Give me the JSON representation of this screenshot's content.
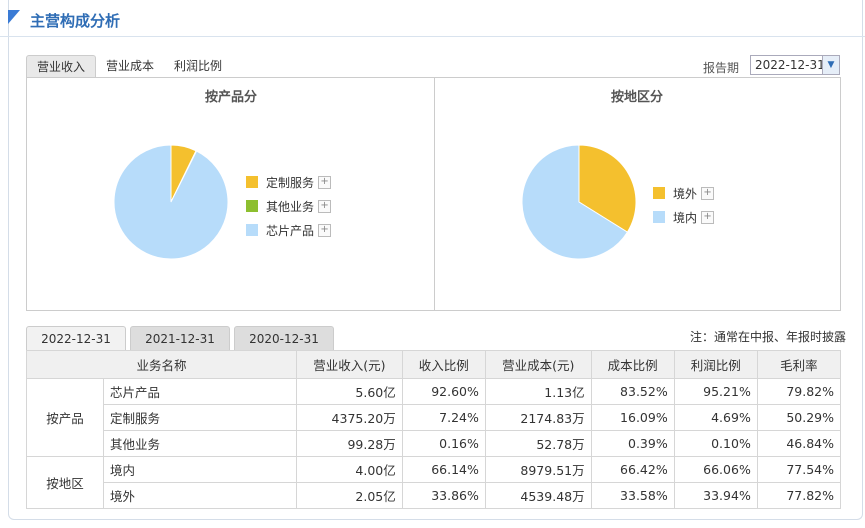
{
  "header": {
    "title": "主营构成分析"
  },
  "top_tabs": [
    {
      "label": "营业收入",
      "active": true
    },
    {
      "label": "营业成本",
      "active": false
    },
    {
      "label": "利润比例",
      "active": false
    }
  ],
  "period": {
    "label": "报告期",
    "value": "2022-12-31"
  },
  "chart_data": [
    {
      "type": "pie",
      "title": "按产品分",
      "slices": [
        {
          "label": "定制服务",
          "value": 7.24,
          "color": "#f4c02e"
        },
        {
          "label": "其他业务",
          "value": 0.16,
          "color": "#8dbf2f"
        },
        {
          "label": "芯片产品",
          "value": 92.6,
          "color": "#b7dcfa"
        }
      ],
      "legend": [
        "定制服务",
        "其他业务",
        "芯片产品"
      ]
    },
    {
      "type": "pie",
      "title": "按地区分",
      "slices": [
        {
          "label": "境外",
          "value": 33.86,
          "color": "#f4c02e"
        },
        {
          "label": "境内",
          "value": 66.14,
          "color": "#b7dcfa"
        }
      ],
      "legend": [
        "境外",
        "境内"
      ]
    }
  ],
  "bottom_tabs": [
    {
      "label": "2022-12-31",
      "active": true
    },
    {
      "label": "2021-12-31",
      "active": false
    },
    {
      "label": "2020-12-31",
      "active": false
    }
  ],
  "note": "注：通常在中报、年报时披露",
  "table": {
    "headers": [
      "业务名称",
      "营业收入(元)",
      "收入比例",
      "营业成本(元)",
      "成本比例",
      "利润比例",
      "毛利率"
    ],
    "groups": [
      {
        "label": "按产品",
        "rows": [
          [
            "芯片产品",
            "5.60亿",
            "92.60%",
            "1.13亿",
            "83.52%",
            "95.21%",
            "79.82%"
          ],
          [
            "定制服务",
            "4375.20万",
            "7.24%",
            "2174.83万",
            "16.09%",
            "4.69%",
            "50.29%"
          ],
          [
            "其他业务",
            "99.28万",
            "0.16%",
            "52.78万",
            "0.39%",
            "0.10%",
            "46.84%"
          ]
        ]
      },
      {
        "label": "按地区",
        "rows": [
          [
            "境内",
            "4.00亿",
            "66.14%",
            "8979.51万",
            "66.42%",
            "66.06%",
            "77.54%"
          ],
          [
            "境外",
            "2.05亿",
            "33.86%",
            "4539.48万",
            "33.58%",
            "33.94%",
            "77.82%"
          ]
        ]
      }
    ]
  }
}
